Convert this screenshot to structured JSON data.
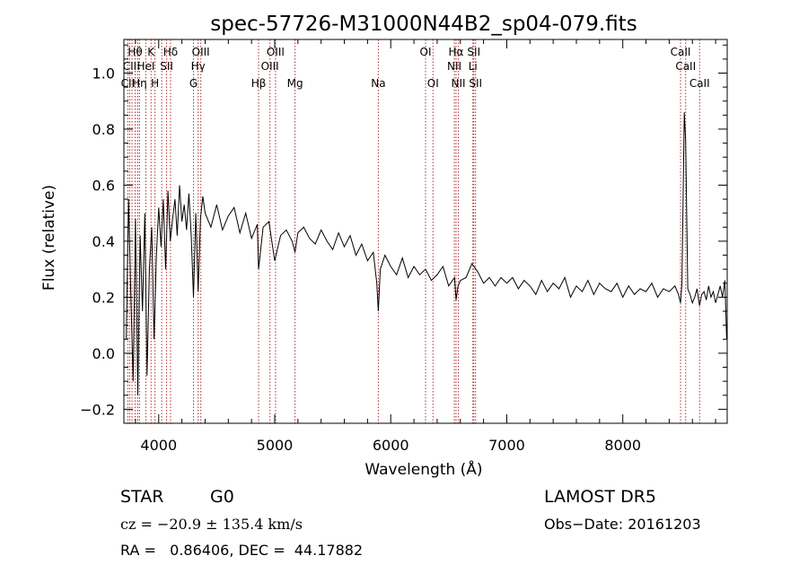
{
  "chart_data": {
    "type": "line",
    "title": "spec-57726-M31000N44B2_sp04-079.fits",
    "xlabel": "Wavelength (Å)",
    "ylabel": "Flux (relative)",
    "xlim": [
      3700,
      8900
    ],
    "ylim": [
      -0.25,
      1.12
    ],
    "xticks": [
      4000,
      5000,
      6000,
      7000,
      8000
    ],
    "yticks": [
      -0.2,
      0.0,
      0.2,
      0.4,
      0.6,
      0.8,
      1.0
    ],
    "ytick_labels": [
      "−0.2",
      "0.0",
      "0.2",
      "0.4",
      "0.6",
      "0.8",
      "1.0"
    ],
    "grid": false,
    "line_color": "#000000",
    "marker_color": "#b03030",
    "series": [
      {
        "x": [
          3720,
          3740,
          3760,
          3780,
          3800,
          3820,
          3840,
          3860,
          3880,
          3900,
          3920,
          3940,
          3960,
          3980,
          4000,
          4020,
          4040,
          4060,
          4080,
          4100,
          4120,
          4140,
          4160,
          4180,
          4200,
          4220,
          4240,
          4260,
          4280,
          4300,
          4320,
          4340,
          4360,
          4380,
          4400,
          4450,
          4500,
          4550,
          4600,
          4650,
          4700,
          4750,
          4800,
          4850,
          4861,
          4900,
          4950,
          5000,
          5050,
          5100,
          5150,
          5175,
          5200,
          5250,
          5300,
          5350,
          5400,
          5450,
          5500,
          5550,
          5600,
          5650,
          5700,
          5750,
          5800,
          5850,
          5880,
          5893,
          5910,
          5950,
          6000,
          6050,
          6100,
          6150,
          6200,
          6250,
          6300,
          6350,
          6400,
          6450,
          6500,
          6550,
          6563,
          6580,
          6600,
          6650,
          6700,
          6750,
          6800,
          6850,
          6900,
          6950,
          7000,
          7050,
          7100,
          7150,
          7200,
          7250,
          7300,
          7350,
          7400,
          7450,
          7500,
          7550,
          7600,
          7650,
          7700,
          7750,
          7800,
          7850,
          7900,
          7950,
          8000,
          8050,
          8100,
          8150,
          8200,
          8250,
          8300,
          8350,
          8400,
          8450,
          8480,
          8498,
          8510,
          8530,
          8542,
          8560,
          8580,
          8600,
          8620,
          8640,
          8662,
          8680,
          8700,
          8720,
          8740,
          8760,
          8780,
          8800,
          8820,
          8840,
          8860,
          8880,
          8895
        ],
        "y": [
          0.05,
          0.55,
          0.2,
          -0.1,
          0.48,
          -0.15,
          0.42,
          0.15,
          0.5,
          -0.08,
          0.3,
          0.45,
          0.05,
          0.35,
          0.52,
          0.38,
          0.55,
          0.3,
          0.58,
          0.4,
          0.48,
          0.55,
          0.42,
          0.6,
          0.47,
          0.53,
          0.44,
          0.57,
          0.42,
          0.2,
          0.5,
          0.22,
          0.48,
          0.56,
          0.5,
          0.45,
          0.53,
          0.44,
          0.49,
          0.52,
          0.43,
          0.5,
          0.41,
          0.46,
          0.3,
          0.45,
          0.47,
          0.33,
          0.42,
          0.44,
          0.4,
          0.36,
          0.43,
          0.45,
          0.41,
          0.39,
          0.44,
          0.4,
          0.37,
          0.43,
          0.38,
          0.42,
          0.35,
          0.39,
          0.33,
          0.36,
          0.25,
          0.15,
          0.3,
          0.35,
          0.31,
          0.28,
          0.34,
          0.27,
          0.31,
          0.28,
          0.3,
          0.26,
          0.28,
          0.31,
          0.24,
          0.27,
          0.19,
          0.24,
          0.26,
          0.27,
          0.32,
          0.29,
          0.25,
          0.27,
          0.24,
          0.27,
          0.25,
          0.27,
          0.23,
          0.26,
          0.24,
          0.21,
          0.26,
          0.22,
          0.25,
          0.23,
          0.27,
          0.2,
          0.24,
          0.22,
          0.26,
          0.21,
          0.25,
          0.23,
          0.22,
          0.25,
          0.2,
          0.24,
          0.21,
          0.23,
          0.22,
          0.25,
          0.2,
          0.23,
          0.22,
          0.24,
          0.21,
          0.18,
          0.25,
          0.86,
          0.76,
          0.23,
          0.21,
          0.18,
          0.2,
          0.23,
          0.17,
          0.21,
          0.22,
          0.19,
          0.24,
          0.2,
          0.22,
          0.18,
          0.21,
          0.24,
          0.2,
          0.26,
          0.05
        ]
      }
    ]
  },
  "line_markers": {
    "wavelengths": [
      3734,
      3750,
      3770,
      3797,
      3820,
      3835,
      3889,
      3934,
      3968,
      4026,
      4068,
      4102,
      4300,
      4340,
      4363,
      4861,
      4959,
      5007,
      5175,
      5893,
      6300,
      6364,
      6548,
      6563,
      6583,
      6708,
      6716,
      6731,
      8498,
      8542,
      8662
    ],
    "labels": [
      {
        "text": "Hθ",
        "wl": 3797,
        "row": 1
      },
      {
        "text": "K",
        "wl": 3934,
        "row": 1
      },
      {
        "text": "Hδ",
        "wl": 4102,
        "row": 1
      },
      {
        "text": "OIII",
        "wl": 4363,
        "row": 1
      },
      {
        "text": "OIII",
        "wl": 5007,
        "row": 1
      },
      {
        "text": "OI",
        "wl": 6300,
        "row": 1
      },
      {
        "text": "Hα",
        "wl": 6563,
        "row": 1
      },
      {
        "text": "SII",
        "wl": 6716,
        "row": 1
      },
      {
        "text": "CaII",
        "wl": 8498,
        "row": 1
      },
      {
        "text": "CII",
        "wl": 3750,
        "row": 2
      },
      {
        "text": "HeI",
        "wl": 3889,
        "row": 2
      },
      {
        "text": "SII",
        "wl": 4068,
        "row": 2
      },
      {
        "text": "Hγ",
        "wl": 4340,
        "row": 2
      },
      {
        "text": "OIII",
        "wl": 4959,
        "row": 2
      },
      {
        "text": "NII",
        "wl": 6548,
        "row": 2
      },
      {
        "text": "Li",
        "wl": 6708,
        "row": 2
      },
      {
        "text": "CaII",
        "wl": 8542,
        "row": 2
      },
      {
        "text": "CII",
        "wl": 3734,
        "row": 3
      },
      {
        "text": "Hη",
        "wl": 3835,
        "row": 3
      },
      {
        "text": "H",
        "wl": 3968,
        "row": 3
      },
      {
        "text": "G",
        "wl": 4300,
        "row": 3
      },
      {
        "text": "Hβ",
        "wl": 4861,
        "row": 3
      },
      {
        "text": "Mg",
        "wl": 5175,
        "row": 3
      },
      {
        "text": "Na",
        "wl": 5893,
        "row": 3
      },
      {
        "text": "OI",
        "wl": 6364,
        "row": 3
      },
      {
        "text": "NII",
        "wl": 6583,
        "row": 3
      },
      {
        "text": "SII",
        "wl": 6731,
        "row": 3
      },
      {
        "text": "CaII",
        "wl": 8662,
        "row": 3
      }
    ]
  },
  "info": {
    "class": "STAR",
    "subclass": "G0",
    "survey": "LAMOST  DR5",
    "cz": "cz = −20.9 ± 135.4 km/s",
    "obs_date": "Obs−Date: 20161203",
    "coords": "RA =   0.86406, DEC =  44.17882"
  }
}
